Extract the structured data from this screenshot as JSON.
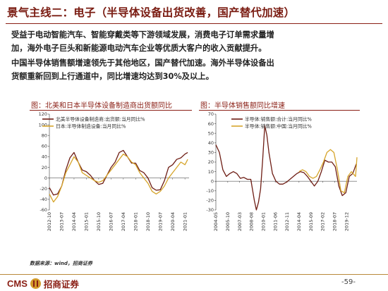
{
  "header": {
    "title": "景气主线二：电子（半导体设备出货改善，国产替代加速）"
  },
  "body": {
    "para1": [
      "受益于电动智能汽车、智能穿戴类等下游领域发展，消费电子订单需求量增",
      "加，海外电子巨头和新能源电动汽车企业等优质大客户的收入贡献提升。"
    ],
    "para2": [
      "中国半导体销售额增速领先于其他地区，国产替代加速。海外半导体设备出",
      "货额重新回到上行通道中，同比增速均达到30%及以上。"
    ]
  },
  "colors": {
    "series_dark": "#6e1d14",
    "series_gold": "#d6a52b",
    "brand": "#8a1e14"
  },
  "chart_data": [
    {
      "type": "line",
      "title": "图：北美和日本半导体设备制造商出货额同比",
      "ylim": [
        -60,
        120
      ],
      "yticks": [
        -60,
        -40,
        -20,
        0,
        20,
        40,
        60,
        80,
        100,
        120
      ],
      "grid": false,
      "legend_position": "top-left",
      "x_range": [
        "2012-10",
        "2021-04"
      ],
      "xtick_labels": [
        "2012-10",
        "2013-07",
        "2014-04",
        "2015-01",
        "2015-10",
        "2016-07",
        "2017-04",
        "2018-01",
        "2018-10",
        "2019-07",
        "2020-04",
        "2021-01"
      ],
      "series": [
        {
          "name": "北美半导体设备制造商:出货额:当月同比%",
          "color": "#6e1d14",
          "x": [
            "2012-10",
            "2013-01",
            "2013-04",
            "2013-07",
            "2013-10",
            "2014-01",
            "2014-04",
            "2014-07",
            "2014-10",
            "2015-01",
            "2015-04",
            "2015-07",
            "2015-10",
            "2016-01",
            "2016-04",
            "2016-07",
            "2016-10",
            "2017-01",
            "2017-04",
            "2017-07",
            "2017-10",
            "2018-01",
            "2018-04",
            "2018-07",
            "2018-10",
            "2019-01",
            "2019-04",
            "2019-07",
            "2019-10",
            "2020-01",
            "2020-04",
            "2020-07",
            "2020-10",
            "2021-01",
            "2021-03"
          ],
          "values": [
            -18,
            -32,
            -30,
            -15,
            15,
            38,
            48,
            30,
            15,
            12,
            5,
            -5,
            -12,
            -10,
            5,
            20,
            30,
            48,
            52,
            40,
            28,
            28,
            14,
            10,
            0,
            -18,
            -23,
            -22,
            -5,
            20,
            25,
            35,
            38,
            45,
            48
          ]
        },
        {
          "name": "日本:半导体制造设备:当月同比%",
          "color": "#d6a52b",
          "x": [
            "2012-10",
            "2013-01",
            "2013-04",
            "2013-07",
            "2013-10",
            "2014-01",
            "2014-04",
            "2014-07",
            "2014-10",
            "2015-01",
            "2015-04",
            "2015-07",
            "2015-10",
            "2016-01",
            "2016-04",
            "2016-07",
            "2016-10",
            "2017-01",
            "2017-04",
            "2017-07",
            "2017-10",
            "2018-01",
            "2018-04",
            "2018-07",
            "2018-10",
            "2019-01",
            "2019-04",
            "2019-07",
            "2019-10",
            "2020-01",
            "2020-04",
            "2020-07",
            "2020-10",
            "2021-01",
            "2021-03"
          ],
          "values": [
            -30,
            -45,
            -35,
            -15,
            10,
            25,
            40,
            30,
            10,
            5,
            0,
            -5,
            -8,
            -5,
            5,
            15,
            25,
            35,
            45,
            40,
            30,
            25,
            10,
            0,
            -10,
            -25,
            -30,
            -25,
            -15,
            0,
            10,
            20,
            30,
            25,
            35
          ]
        }
      ]
    },
    {
      "type": "line",
      "title": "图：半导体销售额同比增速",
      "ylim": [
        -30,
        70
      ],
      "yticks": [
        -30,
        -20,
        -10,
        0,
        10,
        20,
        30,
        40,
        50,
        60,
        70
      ],
      "grid": false,
      "legend_position": "top-left",
      "x_range": [
        "2004-05",
        "2021-03"
      ],
      "xtick_labels": [
        "2004-05",
        "2005-10",
        "2007-03",
        "2008-08",
        "2010-01",
        "2011-06",
        "2012-11",
        "2014-04",
        "2015-09",
        "2017-02",
        "2018-07",
        "2019-12"
      ],
      "series": [
        {
          "name": "半导体:销售额:合计:当月同比%",
          "color": "#6e1d14",
          "x": [
            "2004-05",
            "2004-10",
            "2005-03",
            "2005-08",
            "2006-01",
            "2006-06",
            "2006-11",
            "2007-04",
            "2007-09",
            "2008-02",
            "2008-07",
            "2008-12",
            "2009-03",
            "2009-06",
            "2009-09",
            "2009-12",
            "2010-03",
            "2010-06",
            "2010-09",
            "2011-02",
            "2011-07",
            "2011-12",
            "2012-05",
            "2012-10",
            "2013-03",
            "2013-08",
            "2014-01",
            "2014-06",
            "2014-11",
            "2015-04",
            "2015-09",
            "2016-02",
            "2016-07",
            "2016-12",
            "2017-05",
            "2017-10",
            "2018-03",
            "2018-08",
            "2019-01",
            "2019-06",
            "2019-11",
            "2020-04",
            "2020-09",
            "2021-02"
          ],
          "values": [
            38,
            30,
            12,
            5,
            8,
            10,
            8,
            3,
            4,
            2,
            2,
            -20,
            -30,
            -22,
            -8,
            22,
            58,
            48,
            30,
            8,
            0,
            -3,
            -3,
            -1,
            2,
            5,
            8,
            10,
            9,
            5,
            0,
            -5,
            0,
            10,
            22,
            20,
            20,
            15,
            -5,
            -15,
            -12,
            5,
            8,
            18
          ]
        },
        {
          "name": "半导体:销售额:中国:当月同比%",
          "color": "#d6a52b",
          "x": [
            "2014-04",
            "2014-09",
            "2015-02",
            "2015-07",
            "2015-12",
            "2016-05",
            "2016-10",
            "2017-03",
            "2017-08",
            "2018-01",
            "2018-06",
            "2018-11",
            "2019-04",
            "2019-09",
            "2020-02",
            "2020-07",
            "2021-01",
            "2021-03"
          ],
          "values": [
            10,
            12,
            10,
            5,
            3,
            5,
            12,
            20,
            30,
            33,
            30,
            12,
            -10,
            -12,
            5,
            10,
            5,
            25
          ]
        }
      ]
    }
  ],
  "footer": {
    "source": "数据来源：wind，招商证券",
    "logo_cms": "CMS",
    "logo_name": "招商证券",
    "page_number": "-59-"
  }
}
